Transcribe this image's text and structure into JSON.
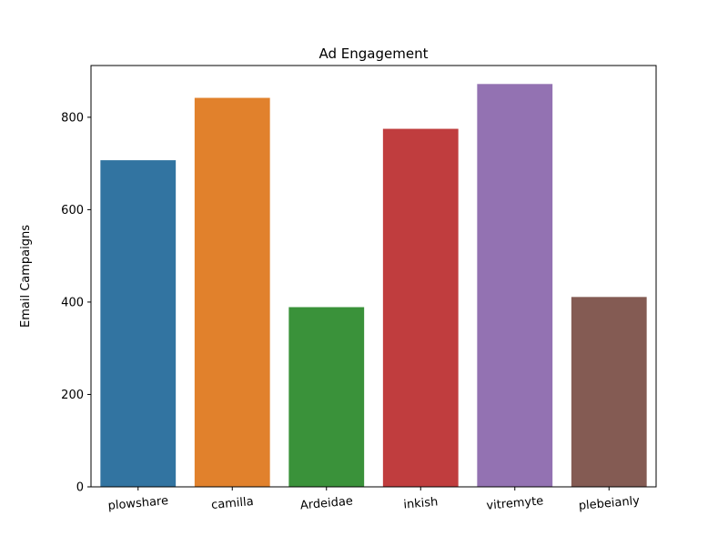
{
  "chart_data": {
    "type": "bar",
    "title": "Ad Engagement",
    "xlabel": "",
    "ylabel": "Email Campaigns",
    "categories": [
      "plowshare",
      "camilla",
      "Ardeidae",
      "inkish",
      "vitremyte",
      "plebeianly"
    ],
    "values": [
      707,
      842,
      389,
      775,
      872,
      411
    ],
    "colors": [
      "#3274a1",
      "#e1812c",
      "#3a923a",
      "#c03d3e",
      "#9372b2",
      "#845b53"
    ],
    "ylim": [
      0,
      912
    ],
    "yticks": [
      0,
      200,
      400,
      600,
      800
    ],
    "grid": false,
    "legend": false,
    "x_tick_rotation_deg": -5
  }
}
